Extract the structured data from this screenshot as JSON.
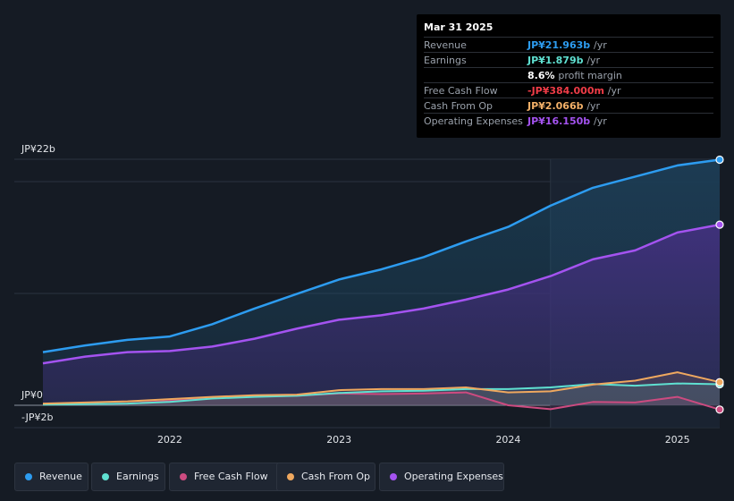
{
  "tooltip": {
    "date": "Mar 31 2025",
    "rows": [
      {
        "label": "Revenue",
        "value": "JP¥21.963b",
        "unit": "/yr",
        "color": "#2d9cf0"
      },
      {
        "label": "Earnings",
        "value": "JP¥1.879b",
        "unit": "/yr",
        "color": "#5fe0d1"
      },
      {
        "label": "",
        "value": "8.6%",
        "unit": "profit margin",
        "color": "#ffffff"
      },
      {
        "label": "Free Cash Flow",
        "value": "-JP¥384.000m",
        "unit": "/yr",
        "color": "#ef3c47"
      },
      {
        "label": "Cash From Op",
        "value": "JP¥2.066b",
        "unit": "/yr",
        "color": "#f3b068"
      },
      {
        "label": "Operating Expenses",
        "value": "JP¥16.150b",
        "unit": "/yr",
        "color": "#a453f0"
      }
    ]
  },
  "axis": {
    "y_top": "JP¥22b",
    "y_zero": "JP¥0",
    "y_bottom": "-JP¥2b"
  },
  "legend": [
    {
      "label": "Revenue",
      "color": "#2d9cf0"
    },
    {
      "label": "Earnings",
      "color": "#5fe0d1"
    },
    {
      "label": "Free Cash Flow",
      "color": "#cc4b80"
    },
    {
      "label": "Cash From Op",
      "color": "#efa85f"
    },
    {
      "label": "Operating Expenses",
      "color": "#a453f0"
    }
  ],
  "chart_data": {
    "type": "line",
    "ylim": [
      -2,
      22
    ],
    "y_unit": "JP¥ billions",
    "x_ticks": [
      {
        "label": "2022",
        "value": 2022
      },
      {
        "label": "2023",
        "value": 2023
      },
      {
        "label": "2024",
        "value": 2024
      },
      {
        "label": "2025",
        "value": 2025
      }
    ],
    "x_range": [
      2021.25,
      2025.25
    ],
    "highlight_from": 2024.25,
    "series": [
      {
        "name": "Revenue",
        "color": "#2d9cf0",
        "area": true,
        "points": [
          [
            2021.25,
            4.75
          ],
          [
            2021.5,
            5.35
          ],
          [
            2021.75,
            5.85
          ],
          [
            2022.0,
            6.15
          ],
          [
            2022.25,
            7.25
          ],
          [
            2022.5,
            8.65
          ],
          [
            2022.75,
            9.95
          ],
          [
            2023.0,
            11.25
          ],
          [
            2023.25,
            12.15
          ],
          [
            2023.5,
            13.25
          ],
          [
            2023.75,
            14.65
          ],
          [
            2024.0,
            15.95
          ],
          [
            2024.25,
            17.85
          ],
          [
            2024.5,
            19.45
          ],
          [
            2024.75,
            20.45
          ],
          [
            2025.0,
            21.45
          ],
          [
            2025.25,
            21.963
          ]
        ]
      },
      {
        "name": "Operating Expenses",
        "color": "#a453f0",
        "area": true,
        "points": [
          [
            2021.25,
            3.75
          ],
          [
            2021.5,
            4.35
          ],
          [
            2021.75,
            4.75
          ],
          [
            2022.0,
            4.85
          ],
          [
            2022.25,
            5.25
          ],
          [
            2022.5,
            5.95
          ],
          [
            2022.75,
            6.85
          ],
          [
            2023.0,
            7.65
          ],
          [
            2023.25,
            8.05
          ],
          [
            2023.5,
            8.65
          ],
          [
            2023.75,
            9.45
          ],
          [
            2024.0,
            10.35
          ],
          [
            2024.25,
            11.55
          ],
          [
            2024.5,
            13.05
          ],
          [
            2024.75,
            13.85
          ],
          [
            2025.0,
            15.45
          ],
          [
            2025.25,
            16.15
          ]
        ]
      },
      {
        "name": "Cash From Op",
        "color": "#efa85f",
        "area": false,
        "points": [
          [
            2021.25,
            0.15
          ],
          [
            2021.5,
            0.25
          ],
          [
            2021.75,
            0.35
          ],
          [
            2022.0,
            0.55
          ],
          [
            2022.25,
            0.75
          ],
          [
            2022.5,
            0.9
          ],
          [
            2022.75,
            0.95
          ],
          [
            2023.0,
            1.35
          ],
          [
            2023.25,
            1.45
          ],
          [
            2023.5,
            1.45
          ],
          [
            2023.75,
            1.6
          ],
          [
            2024.0,
            1.15
          ],
          [
            2024.25,
            1.25
          ],
          [
            2024.5,
            1.85
          ],
          [
            2024.75,
            2.2
          ],
          [
            2025.0,
            2.95
          ],
          [
            2025.25,
            2.066
          ]
        ]
      },
      {
        "name": "Earnings",
        "color": "#5fe0d1",
        "area": false,
        "points": [
          [
            2021.25,
            0.05
          ],
          [
            2021.5,
            0.1
          ],
          [
            2021.75,
            0.15
          ],
          [
            2022.0,
            0.3
          ],
          [
            2022.25,
            0.6
          ],
          [
            2022.5,
            0.75
          ],
          [
            2022.75,
            0.85
          ],
          [
            2023.0,
            1.1
          ],
          [
            2023.25,
            1.25
          ],
          [
            2023.5,
            1.3
          ],
          [
            2023.75,
            1.45
          ],
          [
            2024.0,
            1.45
          ],
          [
            2024.25,
            1.6
          ],
          [
            2024.5,
            1.9
          ],
          [
            2024.75,
            1.75
          ],
          [
            2025.0,
            1.95
          ],
          [
            2025.25,
            1.879
          ]
        ]
      },
      {
        "name": "Free Cash Flow",
        "color": "#cc4b80",
        "area": false,
        "points": [
          [
            2021.25,
            0.05
          ],
          [
            2021.5,
            0.1
          ],
          [
            2021.75,
            0.15
          ],
          [
            2022.0,
            0.4
          ],
          [
            2022.25,
            0.7
          ],
          [
            2022.5,
            0.8
          ],
          [
            2022.75,
            0.85
          ],
          [
            2023.0,
            1.05
          ],
          [
            2023.25,
            1.0
          ],
          [
            2023.5,
            1.05
          ],
          [
            2023.75,
            1.15
          ],
          [
            2024.0,
            0.0
          ],
          [
            2024.25,
            -0.35
          ],
          [
            2024.5,
            0.3
          ],
          [
            2024.75,
            0.25
          ],
          [
            2025.0,
            0.75
          ],
          [
            2025.25,
            -0.384
          ]
        ]
      }
    ]
  }
}
